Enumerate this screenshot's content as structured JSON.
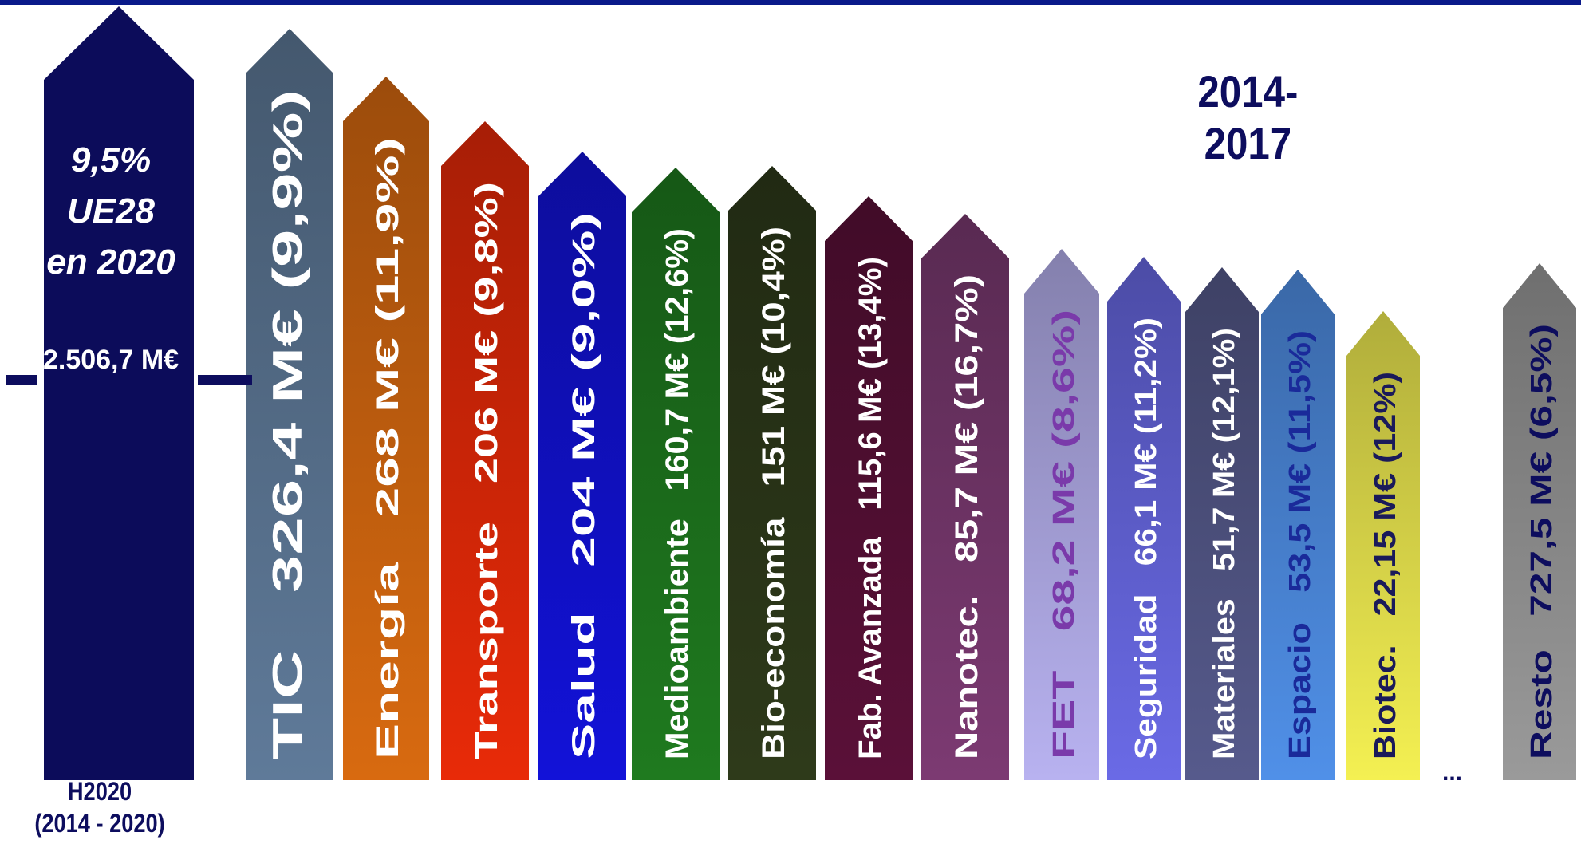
{
  "title": "2014-2017",
  "ellipsis": "...",
  "total_bar": {
    "percent": "9,5%",
    "region": "UE28",
    "year": "en 2020",
    "amount": "2.506,7 M€",
    "label_line1": "H2020",
    "label_line2": "(2014 - 2020)",
    "color": "#0c0c5a"
  },
  "chart_data": {
    "type": "bar",
    "orientation": "vertical-arrows",
    "unit": "M€",
    "categories": [
      "TIC",
      "Energía",
      "Transporte",
      "Salud",
      "Medioambiente",
      "Bio-economía",
      "Fab. Avanzada",
      "Nanotec.",
      "FET",
      "Seguridad",
      "Materiales",
      "Espacio",
      "Biotec.",
      "Resto"
    ],
    "values": [
      326.4,
      268,
      206,
      204,
      160.7,
      151,
      115.6,
      85.7,
      68.2,
      66.1,
      51.7,
      53.5,
      22.15,
      727.5
    ],
    "value_labels": [
      "326,4 M€ (9,9%)",
      "268 M€ (11,9%)",
      "206 M€ (9,8%)",
      "204 M€ (9,0%)",
      "160,7 M€ (12,6%)",
      "151 M€ (10,4%)",
      "115,6 M€ (13,4%)",
      "85,7 M€ (16,7%)",
      "68,2 M€ (8,6%)",
      "66,1 M€ (11,2%)",
      "51,7 M€ (12,1%)",
      "53,5 M€ (11,5%)",
      "22,15 M€ (12%)",
      "727,5 M€ (6,5%)"
    ],
    "shares_percent": [
      9.9,
      11.9,
      9.8,
      9.0,
      12.6,
      10.4,
      13.4,
      16.7,
      8.6,
      11.2,
      12.1,
      11.5,
      12,
      6.5
    ],
    "colors": [
      "#5f7a99",
      "#d86a10",
      "#e82a08",
      "#1212d8",
      "#1f7a1f",
      "#2e3a1a",
      "#5a1038",
      "#7c3a72",
      "#b8b2f0",
      "#6a6ae6",
      "#565a8c",
      "#5090e8",
      "#f4f052",
      "#9a9a9a"
    ],
    "text_colors": [
      "#ffffff",
      "#ffffff",
      "#ffffff",
      "#ffffff",
      "#ffffff",
      "#ffffff",
      "#ffffff",
      "#ffffff",
      "#7a3aaa",
      "#ffffff",
      "#ffffff",
      "#1a2a9a",
      "#1a1a5a",
      "#0d0d5e"
    ]
  }
}
